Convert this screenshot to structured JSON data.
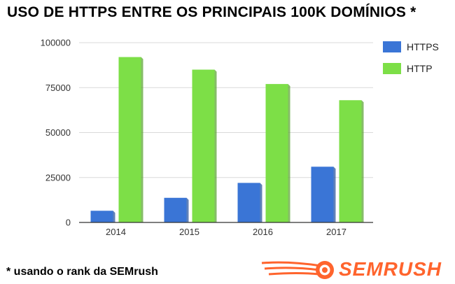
{
  "title": "USO DE HTTPS ENTRE OS PRINCIPAIS 100K DOMÍNIOS *",
  "footnote": "* usando o rank da SEMrush",
  "brand": {
    "name": "SEMRUSH",
    "logo_icon": "semrush-fireball-logo",
    "color": "#ff642d"
  },
  "chart_data": {
    "type": "bar",
    "title": "USO DE HTTPS ENTRE OS PRINCIPAIS 100K DOMÍNIOS *",
    "categories": [
      "2014",
      "2015",
      "2016",
      "2017"
    ],
    "series": [
      {
        "name": "HTTPS",
        "color": "#3a75d6",
        "values": [
          6500,
          13700,
          22000,
          31000
        ]
      },
      {
        "name": "HTTP",
        "color": "#7ddf47",
        "values": [
          92000,
          85000,
          77000,
          68000
        ]
      }
    ],
    "yticks": [
      "0",
      "25000",
      "50000",
      "75000",
      "100000"
    ],
    "ylim": [
      0,
      100000
    ],
    "grid": true,
    "legend": "right"
  }
}
